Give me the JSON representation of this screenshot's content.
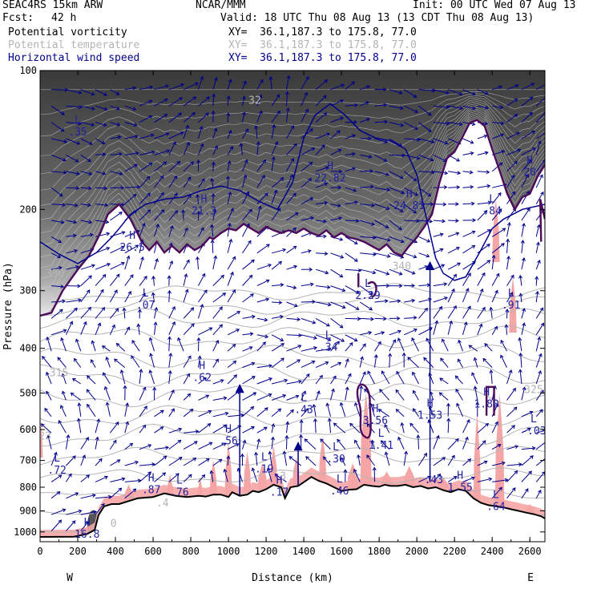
{
  "header": {
    "model": "SEAC4RS 15km ARW",
    "center": "NCAR/MMM",
    "init": "Init: 00 UTC Wed 07 Aug 13",
    "fcst_label": "Fcst:",
    "fcst_value": "42 h",
    "valid": "Valid: 18 UTC Thu 08 Aug 13 (13 CDT Thu 08 Aug 13)",
    "fields": [
      {
        "name": "Potential vorticity",
        "xy": "XY=  36.1,187.3 to 175.8, 77.0",
        "color": "#000000"
      },
      {
        "name": "Potential temperature",
        "xy": "XY=  36.1,187.3 to 175.8, 77.0",
        "color": "#b4b4b4"
      },
      {
        "name": "Horizontal wind speed",
        "xy": "XY=  36.1,187.3 to 175.8, 77.0",
        "color": "#00008c"
      }
    ]
  },
  "chart_data": {
    "type": "cross-section",
    "xlabel": "Distance (km)",
    "ylabel": "Pressure (hPa)",
    "x_ticks": [
      0,
      200,
      400,
      600,
      800,
      1000,
      1200,
      1400,
      1600,
      1800,
      2000,
      2200,
      2400,
      2600
    ],
    "x_range": [
      0,
      2680
    ],
    "y_ticks": [
      100,
      200,
      300,
      400,
      500,
      600,
      700,
      800,
      900,
      1000
    ],
    "y_range": [
      100,
      1050
    ],
    "y_scale": "log",
    "endpoints": {
      "left": "W",
      "right": "E"
    },
    "colors": {
      "terrain": "#000000",
      "pv_contour": "#4b0a5a",
      "wind": "#00008c",
      "theta": "#b4b4b4",
      "moisture": "#f5a5a5"
    },
    "theta_labels": [
      {
        "text": "330",
        "x": 80,
        "p": 280
      },
      {
        "text": "315",
        "x": 100,
        "p": 460
      },
      {
        "text": "340",
        "x": 1920,
        "p": 270
      },
      {
        "text": "325",
        "x": 2620,
        "p": 500
      },
      {
        "text": "32",
        "x": 1140,
        "p": 118
      },
      {
        "text": "323",
        "x": 10,
        "p": 630
      },
      {
        "text": "3",
        "x": 1290,
        "p": 770
      },
      {
        "text": ".4",
        "x": 650,
        "p": 880
      },
      {
        "text": "0",
        "x": 390,
        "p": 975
      }
    ],
    "markers": [
      {
        "sym": "L",
        "val": ".35",
        "x": 200,
        "p": 135,
        "color": "#2020a0"
      },
      {
        "sym": "H",
        "val": "",
        "x": 175,
        "p": 97,
        "color": "#2020a0"
      },
      {
        "sym": "H",
        "val": "21.3",
        "x": 870,
        "p": 200,
        "color": "#2020a0"
      },
      {
        "sym": "H",
        "val": "26.5",
        "x": 490,
        "p": 240,
        "color": "#2020a0"
      },
      {
        "sym": "L",
        "val": ".07",
        "x": 560,
        "p": 320,
        "color": "#2020a0"
      },
      {
        "sym": "H",
        "val": "22.82",
        "x": 1540,
        "p": 170,
        "color": "#2020a0"
      },
      {
        "sym": "H",
        "val": "24.81",
        "x": 1960,
        "p": 195,
        "color": "#2020a0"
      },
      {
        "sym": "L",
        "val": ".84",
        "x": 2400,
        "p": 200,
        "color": "#2020a0"
      },
      {
        "sym": "H",
        "val": "20",
        "x": 2600,
        "p": 165,
        "color": "#2020a0"
      },
      {
        "sym": "L",
        "val": "2.29",
        "x": 1740,
        "p": 305,
        "color": "#2020a0"
      },
      {
        "sym": "L",
        "val": ".91",
        "x": 2500,
        "p": 320,
        "color": "#2020a0"
      },
      {
        "sym": "L",
        "val": ".34",
        "x": 1530,
        "p": 395,
        "color": "#2020a0"
      },
      {
        "sym": "H",
        "val": ".62",
        "x": 860,
        "p": 460,
        "color": "#2020a0"
      },
      {
        "sym": "L",
        "val": ".43",
        "x": 1400,
        "p": 540,
        "color": "#2020a0"
      },
      {
        "sym": "H",
        "val": "3.56",
        "x": 1780,
        "p": 570,
        "color": "#2020a0"
      },
      {
        "sym": "H",
        "val": "1.53",
        "x": 2070,
        "p": 555,
        "color": "#2020a0"
      },
      {
        "sym": "H",
        "val": "1.80",
        "x": 2370,
        "p": 525,
        "color": "#2020a0"
      },
      {
        "sym": "L",
        "val": "-.03",
        "x": 2620,
        "p": 600,
        "color": "#2020a0"
      },
      {
        "sym": "H",
        "val": ".56",
        "x": 1000,
        "p": 630,
        "color": "#2020a0"
      },
      {
        "sym": "L",
        "val": "1.41",
        "x": 1810,
        "p": 645,
        "color": "#2020a0"
      },
      {
        "sym": "L",
        "val": ".30",
        "x": 1570,
        "p": 690,
        "color": "#2020a0"
      },
      {
        "sym": "L",
        "val": ".72",
        "x": 90,
        "p": 730,
        "color": "#2020a0"
      },
      {
        "sym": "L",
        "val": ".19",
        "x": 1190,
        "p": 725,
        "color": "#2020a0"
      },
      {
        "sym": "",
        "val": ".43",
        "x": 2090,
        "p": 765,
        "color": "#2020a0"
      },
      {
        "sym": "H",
        "val": ".87",
        "x": 590,
        "p": 805,
        "color": "#2020a0"
      },
      {
        "sym": "L",
        "val": ".76",
        "x": 740,
        "p": 815,
        "color": "#2020a0"
      },
      {
        "sym": "H",
        "val": ".17",
        "x": 1270,
        "p": 815,
        "color": "#2020a0"
      },
      {
        "sym": "L",
        "val": ".46",
        "x": 1590,
        "p": 810,
        "color": "#2020a0"
      },
      {
        "sym": "H",
        "val": "1.55",
        "x": 2230,
        "p": 795,
        "color": "#2020a0"
      },
      {
        "sym": "L",
        "val": ".64",
        "x": 2420,
        "p": 875,
        "color": "#2020a0"
      },
      {
        "sym": "H",
        "val": "16.8",
        "x": 250,
        "p": 1005,
        "color": "#2020a0"
      }
    ],
    "terrain": [
      [
        0,
        1025
      ],
      [
        180,
        1024
      ],
      [
        250,
        1010
      ],
      [
        290,
        990
      ],
      [
        310,
        920
      ],
      [
        340,
        880
      ],
      [
        380,
        870
      ],
      [
        420,
        870
      ],
      [
        460,
        860
      ],
      [
        520,
        845
      ],
      [
        600,
        840
      ],
      [
        660,
        825
      ],
      [
        720,
        835
      ],
      [
        780,
        840
      ],
      [
        840,
        835
      ],
      [
        880,
        838
      ],
      [
        920,
        830
      ],
      [
        960,
        830
      ],
      [
        1000,
        840
      ],
      [
        1020,
        820
      ],
      [
        1060,
        835
      ],
      [
        1100,
        830
      ],
      [
        1130,
        815
      ],
      [
        1160,
        820
      ],
      [
        1200,
        808
      ],
      [
        1240,
        790
      ],
      [
        1280,
        800
      ],
      [
        1300,
        845
      ],
      [
        1330,
        800
      ],
      [
        1370,
        795
      ],
      [
        1400,
        780
      ],
      [
        1440,
        760
      ],
      [
        1480,
        775
      ],
      [
        1520,
        785
      ],
      [
        1560,
        800
      ],
      [
        1600,
        815
      ],
      [
        1640,
        810
      ],
      [
        1680,
        808
      ],
      [
        1720,
        790
      ],
      [
        1760,
        795
      ],
      [
        1800,
        798
      ],
      [
        1830,
        790
      ],
      [
        1860,
        795
      ],
      [
        1900,
        795
      ],
      [
        1940,
        790
      ],
      [
        1980,
        800
      ],
      [
        2020,
        795
      ],
      [
        2060,
        805
      ],
      [
        2100,
        800
      ],
      [
        2140,
        812
      ],
      [
        2180,
        820
      ],
      [
        2220,
        808
      ],
      [
        2260,
        815
      ],
      [
        2300,
        845
      ],
      [
        2340,
        865
      ],
      [
        2380,
        875
      ],
      [
        2420,
        880
      ],
      [
        2460,
        885
      ],
      [
        2500,
        893
      ],
      [
        2540,
        900
      ],
      [
        2580,
        908
      ],
      [
        2620,
        915
      ],
      [
        2660,
        925
      ],
      [
        2680,
        935
      ]
    ],
    "tropopause_pv": [
      [
        0,
        340
      ],
      [
        60,
        335
      ],
      [
        120,
        300
      ],
      [
        200,
        270
      ],
      [
        260,
        252
      ],
      [
        320,
        225
      ],
      [
        360,
        205
      ],
      [
        420,
        195
      ],
      [
        480,
        210
      ],
      [
        540,
        235
      ],
      [
        580,
        245
      ],
      [
        620,
        235
      ],
      [
        660,
        248
      ],
      [
        700,
        240
      ],
      [
        740,
        248
      ],
      [
        780,
        238
      ],
      [
        820,
        245
      ],
      [
        860,
        240
      ],
      [
        900,
        230
      ],
      [
        920,
        232
      ],
      [
        960,
        225
      ],
      [
        1000,
        220
      ],
      [
        1040,
        222
      ],
      [
        1080,
        215
      ],
      [
        1120,
        220
      ],
      [
        1160,
        225
      ],
      [
        1200,
        218
      ],
      [
        1240,
        222
      ],
      [
        1280,
        225
      ],
      [
        1320,
        222
      ],
      [
        1360,
        225
      ],
      [
        1400,
        220
      ],
      [
        1440,
        225
      ],
      [
        1480,
        228
      ],
      [
        1520,
        222
      ],
      [
        1560,
        230
      ],
      [
        1600,
        225
      ],
      [
        1640,
        230
      ],
      [
        1680,
        232
      ],
      [
        1720,
        235
      ],
      [
        1760,
        240
      ],
      [
        1800,
        245
      ],
      [
        1840,
        238
      ],
      [
        1880,
        248
      ],
      [
        1920,
        252
      ],
      [
        1960,
        240
      ],
      [
        2000,
        230
      ],
      [
        2040,
        218
      ],
      [
        2080,
        205
      ],
      [
        2120,
        175
      ],
      [
        2160,
        155
      ],
      [
        2200,
        150
      ],
      [
        2240,
        140
      ],
      [
        2280,
        130
      ],
      [
        2320,
        128
      ],
      [
        2360,
        132
      ],
      [
        2400,
        148
      ],
      [
        2440,
        165
      ],
      [
        2480,
        185
      ],
      [
        2520,
        200
      ],
      [
        2560,
        188
      ],
      [
        2600,
        185
      ],
      [
        2640,
        170
      ],
      [
        2680,
        160
      ]
    ],
    "wind_isotach": [
      [
        0,
        235
      ],
      [
        100,
        250
      ],
      [
        200,
        262
      ],
      [
        300,
        248
      ],
      [
        380,
        230
      ],
      [
        420,
        220
      ],
      [
        480,
        205
      ],
      [
        560,
        195
      ],
      [
        660,
        190
      ],
      [
        760,
        188
      ],
      [
        860,
        182
      ],
      [
        960,
        178
      ],
      [
        1060,
        182
      ],
      [
        1160,
        192
      ],
      [
        1260,
        200
      ],
      [
        1340,
        175
      ],
      [
        1400,
        140
      ],
      [
        1460,
        125
      ],
      [
        1540,
        118
      ],
      [
        1620,
        125
      ],
      [
        1700,
        135
      ],
      [
        1780,
        140
      ],
      [
        1860,
        142
      ],
      [
        1940,
        148
      ],
      [
        2000,
        168
      ],
      [
        2040,
        200
      ],
      [
        2080,
        235
      ],
      [
        2100,
        255
      ],
      [
        2140,
        275
      ],
      [
        2200,
        285
      ],
      [
        2260,
        280
      ],
      [
        2300,
        262
      ],
      [
        2340,
        245
      ],
      [
        2400,
        220
      ],
      [
        2460,
        210
      ],
      [
        2560,
        200
      ],
      [
        2680,
        195
      ]
    ],
    "theta_isentropes": [
      {
        "p0": 305,
        "p1": 300,
        "wiggle": 8
      },
      {
        "p0": 325,
        "p1": 320,
        "wiggle": 10
      },
      {
        "p0": 345,
        "p1": 345,
        "wiggle": 12
      },
      {
        "p0": 380,
        "p1": 378,
        "wiggle": 14
      },
      {
        "p0": 420,
        "p1": 415,
        "wiggle": 16
      },
      {
        "p0": 460,
        "p1": 455,
        "wiggle": 18
      },
      {
        "p0": 510,
        "p1": 500,
        "wiggle": 20
      },
      {
        "p0": 560,
        "p1": 555,
        "wiggle": 22
      },
      {
        "p0": 620,
        "p1": 615,
        "wiggle": 24
      },
      {
        "p0": 690,
        "p1": 680,
        "wiggle": 22
      },
      {
        "p0": 760,
        "p1": 755,
        "wiggle": 20
      },
      {
        "p0": 840,
        "p1": 835,
        "wiggle": 18
      },
      {
        "p0": 920,
        "p1": 910,
        "wiggle": 14
      },
      {
        "p0": 1000,
        "p1": 990,
        "wiggle": 10
      }
    ],
    "moisture_spikes": [
      {
        "x": 0,
        "p0": 560,
        "p1": 690,
        "w": 30
      },
      {
        "x": 470,
        "p0": 790,
        "p1": 880,
        "w": 60
      },
      {
        "x": 690,
        "p0": 750,
        "p1": 860,
        "w": 40
      },
      {
        "x": 850,
        "p0": 760,
        "p1": 850,
        "w": 30
      },
      {
        "x": 920,
        "p0": 700,
        "p1": 840,
        "w": 40
      },
      {
        "x": 1000,
        "p0": 640,
        "p1": 840,
        "w": 40
      },
      {
        "x": 1100,
        "p0": 670,
        "p1": 820,
        "w": 40
      },
      {
        "x": 1180,
        "p0": 710,
        "p1": 810,
        "w": 50
      },
      {
        "x": 1240,
        "p0": 650,
        "p1": 800,
        "w": 40
      },
      {
        "x": 1360,
        "p0": 690,
        "p1": 790,
        "w": 40
      },
      {
        "x": 1500,
        "p0": 620,
        "p1": 780,
        "w": 40
      },
      {
        "x": 1660,
        "p0": 710,
        "p1": 810,
        "w": 60
      },
      {
        "x": 1730,
        "p0": 500,
        "p1": 800,
        "w": 60
      },
      {
        "x": 1840,
        "p0": 740,
        "p1": 800,
        "w": 60
      },
      {
        "x": 1960,
        "p0": 720,
        "p1": 800,
        "w": 60
      },
      {
        "x": 2140,
        "p0": 760,
        "p1": 820,
        "w": 60
      },
      {
        "x": 2260,
        "p0": 770,
        "p1": 850,
        "w": 50
      },
      {
        "x": 2320,
        "p0": 550,
        "p1": 870,
        "w": 40
      },
      {
        "x": 2440,
        "p0": 500,
        "p1": 890,
        "w": 50
      },
      {
        "x": 2510,
        "p0": 280,
        "p1": 370,
        "w": 40
      },
      {
        "x": 2420,
        "p0": 190,
        "p1": 260,
        "w": 40
      },
      {
        "x": 2600,
        "p0": 870,
        "p1": 930,
        "w": 60
      }
    ]
  }
}
